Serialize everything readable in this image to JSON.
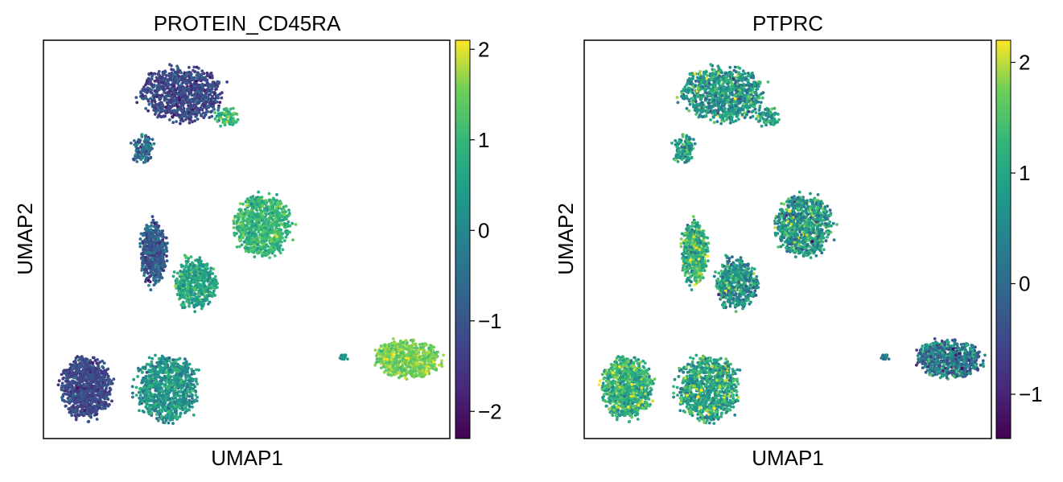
{
  "chart_data": [
    {
      "type": "scatter",
      "title": "PROTEIN_CD45RA",
      "xlabel": "UMAP1",
      "ylabel": "UMAP2",
      "colormap": "viridis",
      "colorbar": {
        "min": -2.3,
        "max": 2.1,
        "ticks": [
          -2,
          -1,
          0,
          1,
          2
        ],
        "tick_labels": [
          "−2",
          "−1",
          "0",
          "1",
          "2"
        ]
      },
      "x_ticks_shown": false,
      "y_ticks_shown": false,
      "clusters": [
        {
          "id": "top-cluster",
          "center": [
            1.6,
            8.7
          ],
          "spread": [
            1.05,
            0.65
          ],
          "n": 900,
          "mean": -1.2,
          "sd": 0.35
        },
        {
          "id": "top-cluster-tail",
          "center": [
            2.9,
            8.1
          ],
          "spread": [
            0.35,
            0.25
          ],
          "n": 80,
          "mean": 0.8,
          "sd": 0.5
        },
        {
          "id": "top-left-spur",
          "center": [
            0.5,
            7.3
          ],
          "spread": [
            0.3,
            0.35
          ],
          "n": 120,
          "mean": -0.6,
          "sd": 0.6
        },
        {
          "id": "right-middle-cluster",
          "center": [
            3.9,
            5.3
          ],
          "spread": [
            0.75,
            0.75
          ],
          "n": 800,
          "mean": 1.0,
          "sd": 0.35
        },
        {
          "id": "mid-left-cluster",
          "center": [
            0.8,
            4.6
          ],
          "spread": [
            0.35,
            0.75
          ],
          "n": 500,
          "mean": -0.9,
          "sd": 0.45
        },
        {
          "id": "mid-center-cluster",
          "center": [
            2.0,
            3.8
          ],
          "spread": [
            0.55,
            0.6
          ],
          "n": 500,
          "mean": 0.6,
          "sd": 0.4
        },
        {
          "id": "bottom-left-cluster",
          "center": [
            -1.1,
            1.1
          ],
          "spread": [
            0.65,
            0.75
          ],
          "n": 900,
          "mean": -1.2,
          "sd": 0.3
        },
        {
          "id": "bottom-center-cluster",
          "center": [
            1.2,
            1.1
          ],
          "spread": [
            0.8,
            0.8
          ],
          "n": 900,
          "mean": 0.3,
          "sd": 0.45
        },
        {
          "id": "right-cluster",
          "center": [
            8.0,
            1.85
          ],
          "spread": [
            0.85,
            0.45
          ],
          "n": 700,
          "mean": 1.55,
          "sd": 0.25
        },
        {
          "id": "right-cluster-satellite",
          "center": [
            6.2,
            1.9
          ],
          "spread": [
            0.15,
            0.06
          ],
          "n": 15,
          "mean": 0.3,
          "sd": 0.3
        }
      ]
    },
    {
      "type": "scatter",
      "title": "PTPRC",
      "xlabel": "UMAP1",
      "ylabel": "UMAP2",
      "colormap": "viridis",
      "colorbar": {
        "min": -1.4,
        "max": 2.2,
        "ticks": [
          -1,
          0,
          1,
          2
        ],
        "tick_labels": [
          "−1",
          "0",
          "1",
          "2"
        ]
      },
      "x_ticks_shown": false,
      "y_ticks_shown": false,
      "clusters": [
        {
          "id": "top-cluster",
          "center": [
            1.6,
            8.7
          ],
          "spread": [
            1.05,
            0.65
          ],
          "n": 900,
          "mean": 0.8,
          "sd": 0.55
        },
        {
          "id": "top-cluster-tail",
          "center": [
            2.9,
            8.1
          ],
          "spread": [
            0.35,
            0.25
          ],
          "n": 80,
          "mean": 0.9,
          "sd": 0.5
        },
        {
          "id": "top-left-spur",
          "center": [
            0.5,
            7.3
          ],
          "spread": [
            0.3,
            0.35
          ],
          "n": 120,
          "mean": 0.9,
          "sd": 0.5
        },
        {
          "id": "right-middle-cluster",
          "center": [
            3.9,
            5.3
          ],
          "spread": [
            0.75,
            0.75
          ],
          "n": 800,
          "mean": 0.8,
          "sd": 0.6
        },
        {
          "id": "mid-left-cluster",
          "center": [
            0.8,
            4.6
          ],
          "spread": [
            0.35,
            0.75
          ],
          "n": 500,
          "mean": 1.2,
          "sd": 0.55
        },
        {
          "id": "mid-center-cluster",
          "center": [
            2.0,
            3.8
          ],
          "spread": [
            0.55,
            0.6
          ],
          "n": 500,
          "mean": 0.7,
          "sd": 0.6
        },
        {
          "id": "bottom-left-cluster",
          "center": [
            -1.1,
            1.1
          ],
          "spread": [
            0.65,
            0.75
          ],
          "n": 900,
          "mean": 1.2,
          "sd": 0.45
        },
        {
          "id": "bottom-center-cluster",
          "center": [
            1.2,
            1.1
          ],
          "spread": [
            0.8,
            0.8
          ],
          "n": 900,
          "mean": 1.0,
          "sd": 0.5
        },
        {
          "id": "right-cluster",
          "center": [
            8.0,
            1.85
          ],
          "spread": [
            0.85,
            0.45
          ],
          "n": 700,
          "mean": 0.2,
          "sd": 0.6
        },
        {
          "id": "right-cluster-satellite",
          "center": [
            6.2,
            1.9
          ],
          "spread": [
            0.15,
            0.06
          ],
          "n": 15,
          "mean": 0.3,
          "sd": 0.3
        }
      ]
    }
  ]
}
